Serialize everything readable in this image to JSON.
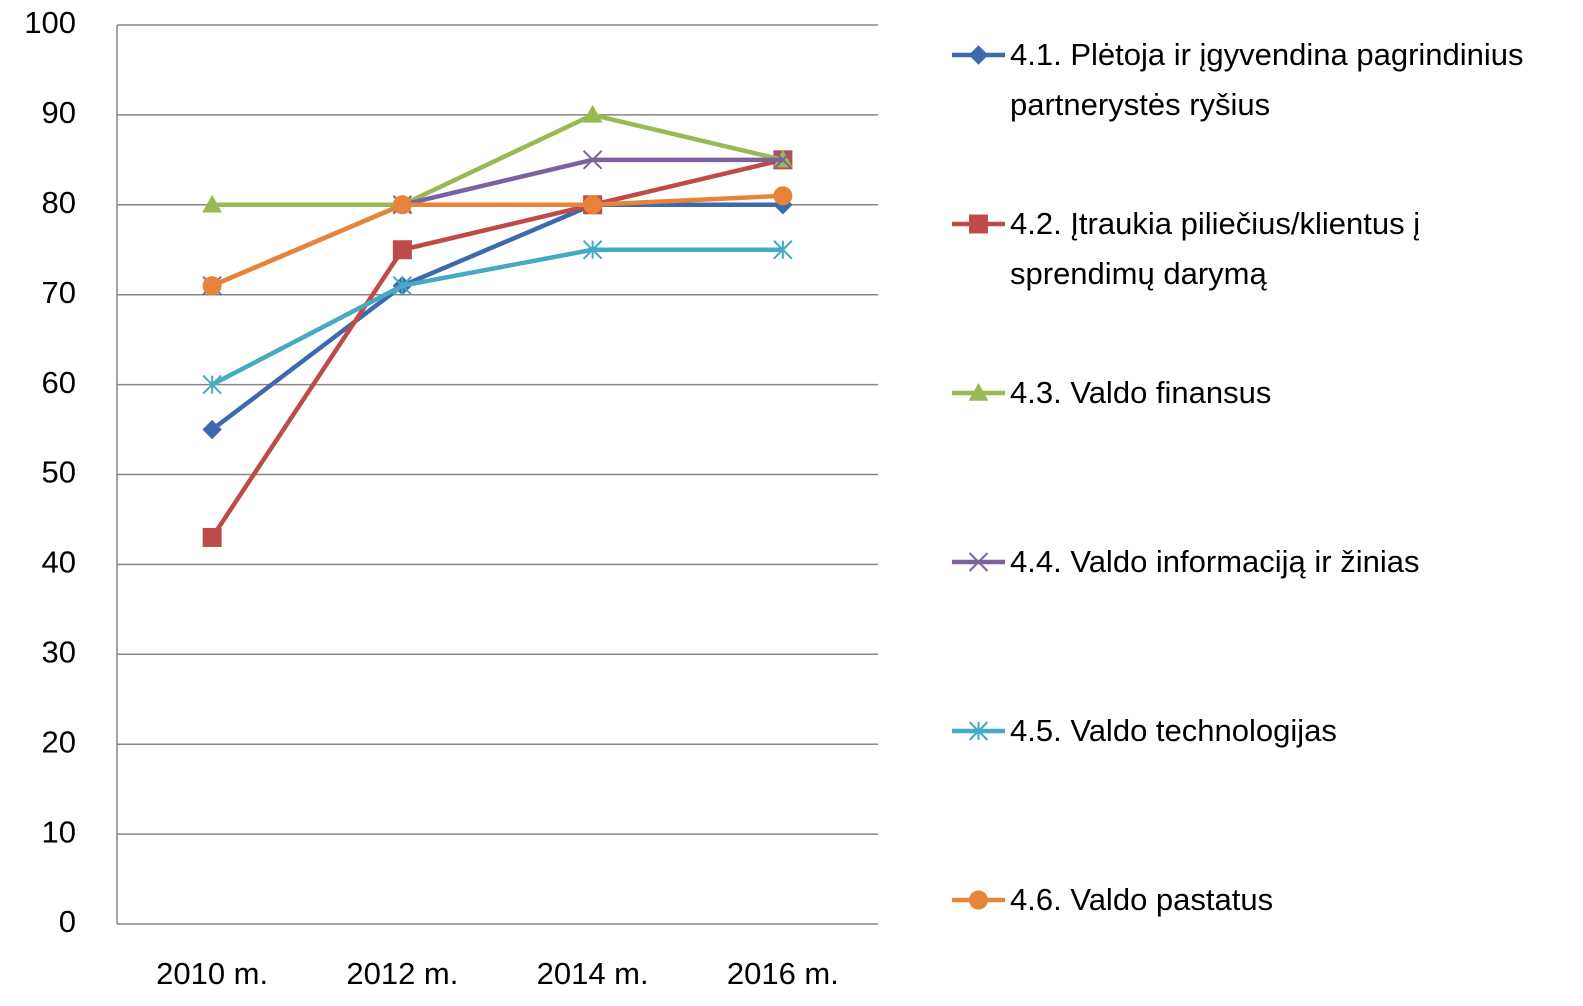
{
  "chart_data": {
    "type": "line",
    "categories": [
      "2010 m.",
      "2012 m.",
      "2014 m.",
      "2016 m."
    ],
    "series": [
      {
        "name": "4.1. Plėtoja ir įgyvendina pagrindinius partnerystės ryšius",
        "color": "#3e6aad",
        "marker": "diamond",
        "values": [
          55,
          71,
          80,
          80
        ]
      },
      {
        "name": "4.2. Įtraukia piliečius/klientus į sprendimų darymą",
        "color": "#be4b48",
        "marker": "square",
        "values": [
          43,
          75,
          80,
          85
        ]
      },
      {
        "name": "4.3. Valdo finansus",
        "color": "#98b954",
        "marker": "triangle",
        "values": [
          80,
          80,
          90,
          85
        ]
      },
      {
        "name": "4.4. Valdo informaciją ir žinias",
        "color": "#7d60a0",
        "marker": "x",
        "values": [
          71,
          80,
          85,
          85
        ]
      },
      {
        "name": "4.5. Valdo technologijas",
        "color": "#46aac5",
        "marker": "star",
        "values": [
          60,
          71,
          75,
          75
        ]
      },
      {
        "name": "4.6. Valdo pastatus",
        "color": "#e8843a",
        "marker": "circle",
        "values": [
          71,
          80,
          80,
          81
        ]
      }
    ],
    "ylim": [
      0,
      100
    ],
    "yticks": [
      0,
      10,
      20,
      30,
      40,
      50,
      60,
      70,
      80,
      90,
      100
    ],
    "grid": true,
    "legend": "right"
  }
}
